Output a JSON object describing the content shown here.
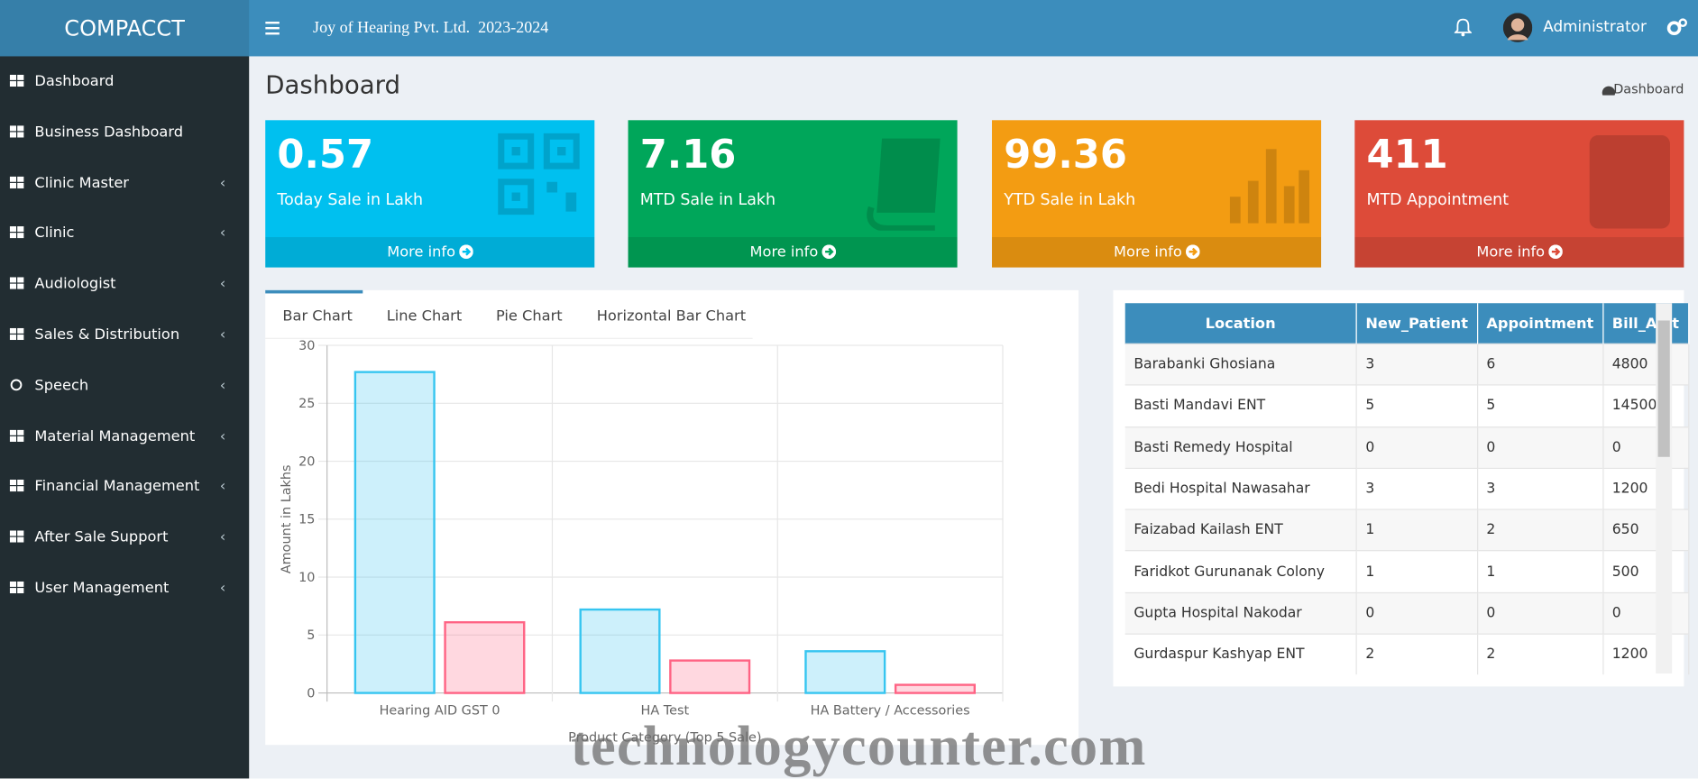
{
  "header": {
    "brand": "COMPACCT",
    "company": "Joy of Hearing Pvt. Ltd.  2023-2024",
    "user": "Administrator"
  },
  "sidebar": {
    "items": [
      "Dashboard",
      "Business Dashboard",
      "Clinic Master",
      "Clinic",
      "Audiologist",
      "Sales & Distribution",
      "Speech",
      "Material Management",
      "Financial Management",
      "After Sale Support",
      "User Management"
    ]
  },
  "page": {
    "title": "Dashboard",
    "breadcrumb": "Dashboard"
  },
  "cards": [
    {
      "value": "0.57",
      "label": "Today Sale in Lakh",
      "link": "More info",
      "color": "#00c0ef"
    },
    {
      "value": "7.16",
      "label": "MTD Sale in Lakh",
      "link": "More info",
      "color": "#00a65a"
    },
    {
      "value": "99.36",
      "label": "YTD Sale in Lakh",
      "link": "More info",
      "color": "#f39c12"
    },
    {
      "value": "411",
      "label": "MTD Appointment",
      "link": "More info",
      "color": "#dd4b39"
    }
  ],
  "tabs": [
    "Bar Chart",
    "Line Chart",
    "Pie Chart",
    "Horizontal Bar Chart"
  ],
  "chart_data": {
    "type": "bar",
    "x_label": "Product Category (Top 5 Sale)",
    "y_label": "Amount in Lakhs",
    "categories": [
      "Hearing AID GST 0",
      "HA Test",
      "HA Battery / Accessories"
    ],
    "series": [
      {
        "color": "#36c5f0",
        "values": [
          27.7,
          7.2,
          3.6
        ]
      },
      {
        "color": "#ff6384",
        "values": [
          6.1,
          2.8,
          0.7
        ]
      }
    ],
    "ylim": [
      0,
      30
    ],
    "yticks": [
      0,
      5,
      10,
      15,
      20,
      25,
      30
    ],
    "grid": true
  },
  "table": {
    "columns": [
      "Location",
      "New_Patient",
      "Appointment",
      "Bill_Amt"
    ],
    "rows": [
      [
        "Barabanki Ghosiana",
        3,
        6,
        4800
      ],
      [
        "Basti Mandavi ENT",
        5,
        5,
        14500
      ],
      [
        "Basti Remedy Hospital",
        0,
        0,
        0
      ],
      [
        "Bedi Hospital Nawasahar",
        3,
        3,
        1200
      ],
      [
        "Faizabad Kailash ENT",
        1,
        2,
        650
      ],
      [
        "Faridkot Gurunanak Colony",
        1,
        1,
        500
      ],
      [
        "Gupta Hospital Nakodar",
        0,
        0,
        0
      ],
      [
        "Gurdaspur Kashyap ENT",
        2,
        2,
        1200
      ]
    ]
  },
  "watermark": "technologycounter.com"
}
